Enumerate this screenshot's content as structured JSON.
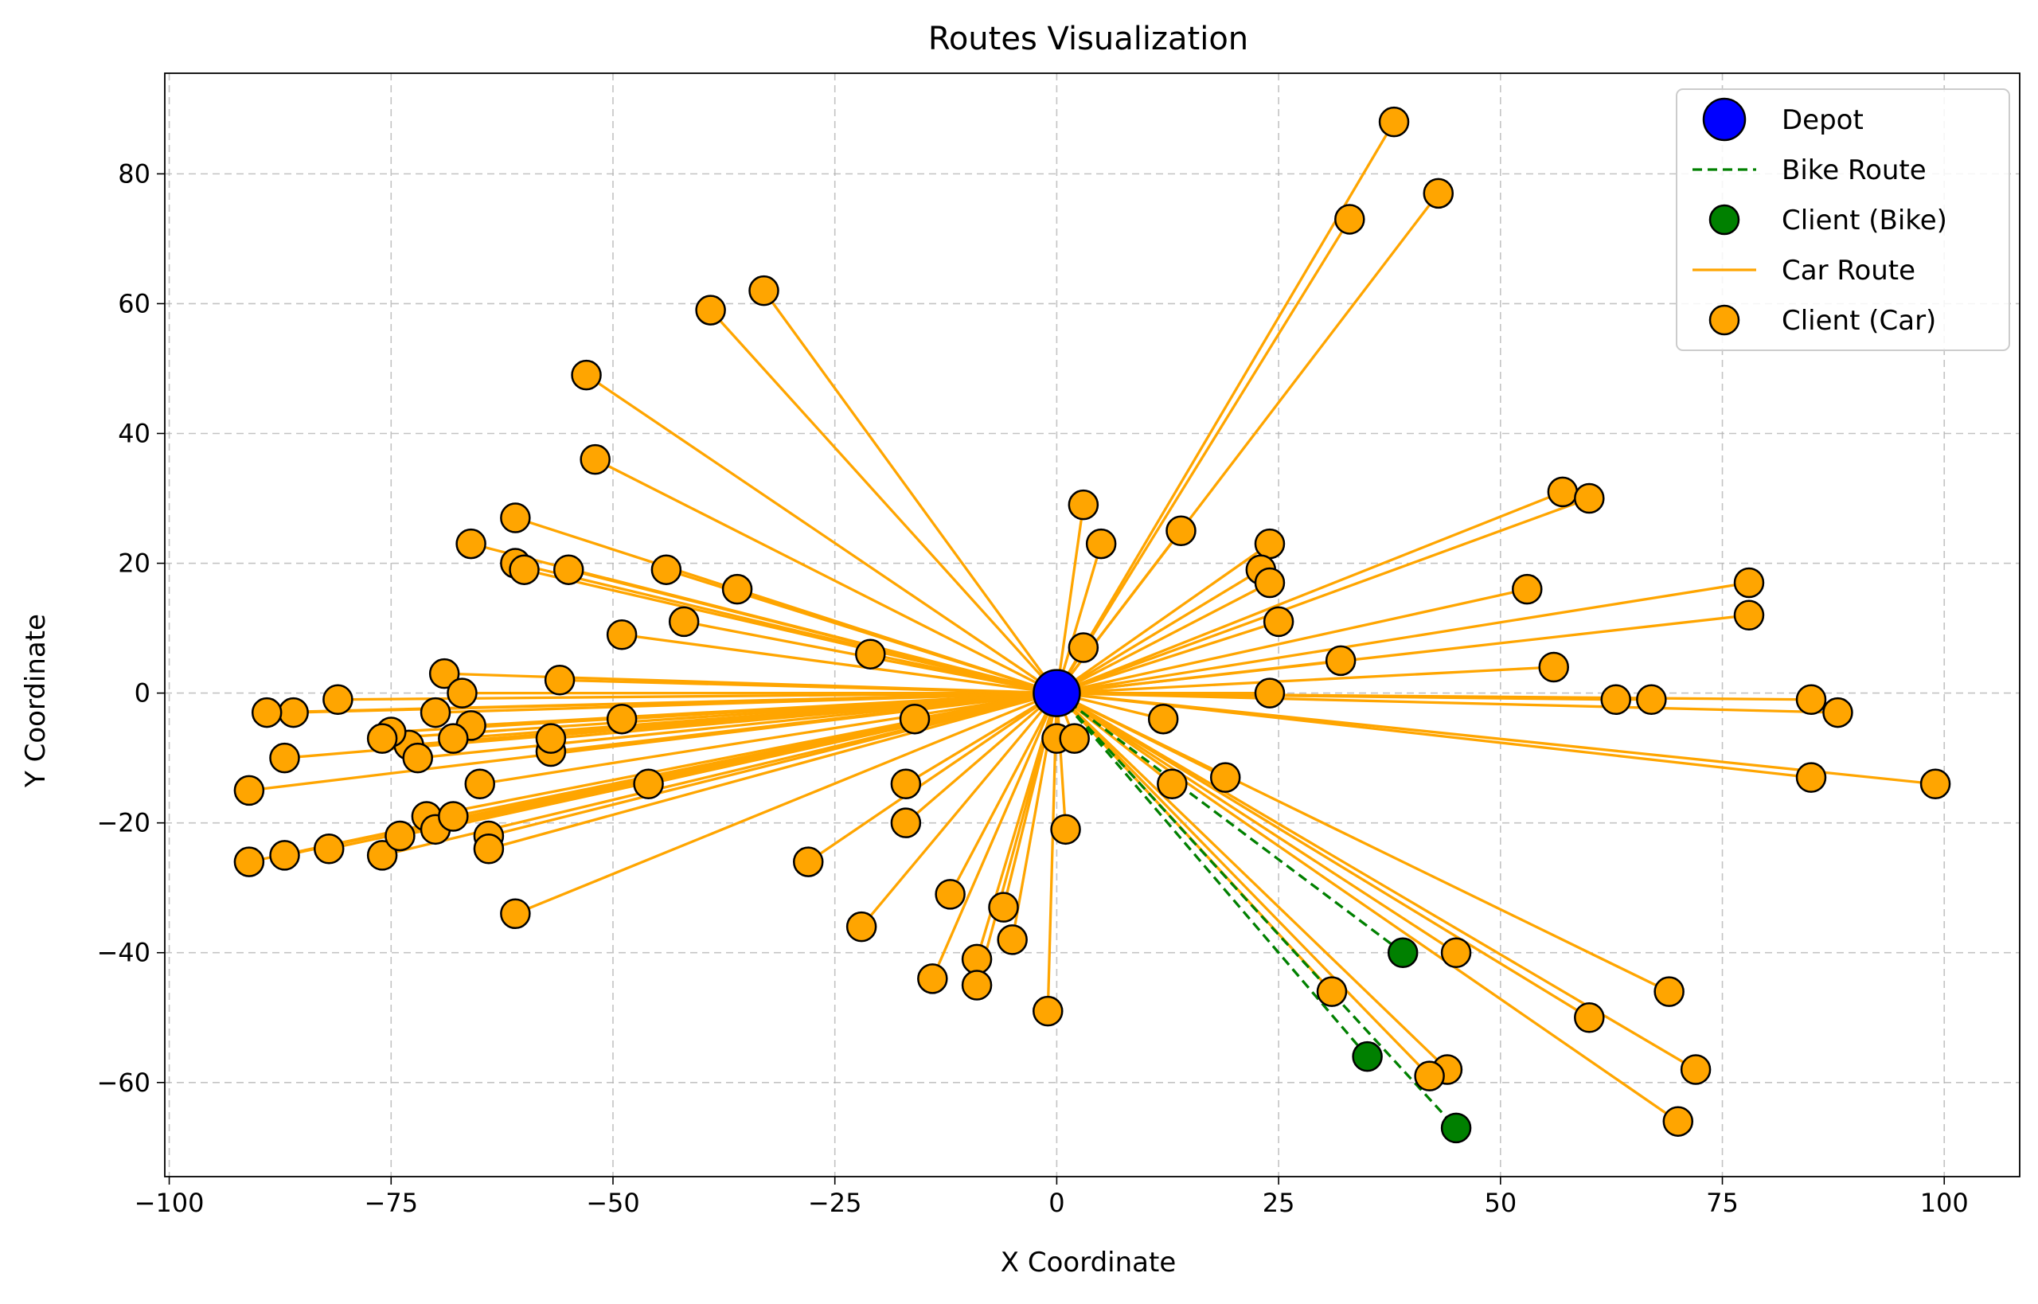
{
  "chart_data": {
    "type": "scatter",
    "title": "Routes Visualization",
    "xlabel": "X Coordinate",
    "ylabel": "Y Coordinate",
    "xlim": [
      -100.5,
      108.5
    ],
    "ylim": [
      -74.5,
      95.5
    ],
    "xticks": [
      -100,
      -75,
      -50,
      -25,
      0,
      25,
      50,
      75,
      100
    ],
    "yticks": [
      -60,
      -40,
      -20,
      0,
      20,
      40,
      60,
      80
    ],
    "xtick_labels": [
      "−100",
      "−75",
      "−50",
      "−25",
      "0",
      "25",
      "50",
      "75",
      "100"
    ],
    "ytick_labels": [
      "−60",
      "−40",
      "−20",
      "0",
      "20",
      "40",
      "60",
      "80"
    ],
    "grid": true,
    "legend_position": "top-right",
    "legend": [
      {
        "label": "Depot",
        "kind": "depot"
      },
      {
        "label": "Bike Route",
        "kind": "bike-line"
      },
      {
        "label": "Client (Bike)",
        "kind": "bike-point"
      },
      {
        "label": "Car Route",
        "kind": "car-line"
      },
      {
        "label": "Client (Car)",
        "kind": "car-point"
      }
    ],
    "colors": {
      "depot": "#0000FF",
      "bike": "#008000",
      "car": "#FFA500",
      "edge": "#000000"
    },
    "depot": [
      0,
      0
    ],
    "bike_clients": [
      [
        39,
        -40
      ],
      [
        35,
        -56
      ],
      [
        45,
        -67
      ]
    ],
    "car_clients": [
      [
        38,
        88
      ],
      [
        43,
        77
      ],
      [
        33,
        73
      ],
      [
        -33,
        62
      ],
      [
        -39,
        59
      ],
      [
        -53,
        49
      ],
      [
        -52,
        36
      ],
      [
        3,
        29
      ],
      [
        5,
        23
      ],
      [
        14,
        25
      ],
      [
        24,
        23
      ],
      [
        23,
        19
      ],
      [
        24,
        17
      ],
      [
        25,
        11
      ],
      [
        3,
        7
      ],
      [
        57,
        31
      ],
      [
        60,
        30
      ],
      [
        53,
        16
      ],
      [
        78,
        17
      ],
      [
        78,
        12
      ],
      [
        32,
        5
      ],
      [
        56,
        4
      ],
      [
        24,
        0
      ],
      [
        63,
        -1
      ],
      [
        67,
        -1
      ],
      [
        85,
        -1
      ],
      [
        88,
        -3
      ],
      [
        85,
        -13
      ],
      [
        99,
        -14
      ],
      [
        12,
        -4
      ],
      [
        13,
        -14
      ],
      [
        19,
        -13
      ],
      [
        45,
        -40
      ],
      [
        69,
        -46
      ],
      [
        60,
        -50
      ],
      [
        72,
        -58
      ],
      [
        70,
        -66
      ],
      [
        31,
        -46
      ],
      [
        44,
        -58
      ],
      [
        42,
        -59
      ],
      [
        -61,
        27
      ],
      [
        -66,
        23
      ],
      [
        -61,
        20
      ],
      [
        -60,
        19
      ],
      [
        -55,
        19
      ],
      [
        -44,
        19
      ],
      [
        -36,
        16
      ],
      [
        -42,
        11
      ],
      [
        -49,
        9
      ],
      [
        -21,
        6
      ],
      [
        -56,
        2
      ],
      [
        -69,
        3
      ],
      [
        -67,
        0
      ],
      [
        -66,
        -5
      ],
      [
        -68,
        -7
      ],
      [
        -70,
        -3
      ],
      [
        -73,
        -8
      ],
      [
        -72,
        -10
      ],
      [
        -75,
        -6
      ],
      [
        -76,
        -7
      ],
      [
        -81,
        -1
      ],
      [
        -86,
        -3
      ],
      [
        -89,
        -3
      ],
      [
        -87,
        -10
      ],
      [
        -91,
        -15
      ],
      [
        -91,
        -26
      ],
      [
        -87,
        -25
      ],
      [
        -82,
        -24
      ],
      [
        -76,
        -25
      ],
      [
        -74,
        -22
      ],
      [
        -71,
        -19
      ],
      [
        -70,
        -21
      ],
      [
        -68,
        -19
      ],
      [
        -64,
        -22
      ],
      [
        -64,
        -24
      ],
      [
        -65,
        -14
      ],
      [
        -57,
        -9
      ],
      [
        -57,
        -7
      ],
      [
        -49,
        -4
      ],
      [
        -46,
        -14
      ],
      [
        -61,
        -34
      ],
      [
        -28,
        -26
      ],
      [
        -22,
        -36
      ],
      [
        -17,
        -14
      ],
      [
        -17,
        -20
      ],
      [
        -16,
        -4
      ],
      [
        -12,
        -31
      ],
      [
        -14,
        -44
      ],
      [
        -9,
        -41
      ],
      [
        -9,
        -45
      ],
      [
        -6,
        -33
      ],
      [
        -5,
        -38
      ],
      [
        -1,
        -49
      ],
      [
        0,
        -7
      ],
      [
        2,
        -7
      ],
      [
        1,
        -21
      ]
    ]
  }
}
